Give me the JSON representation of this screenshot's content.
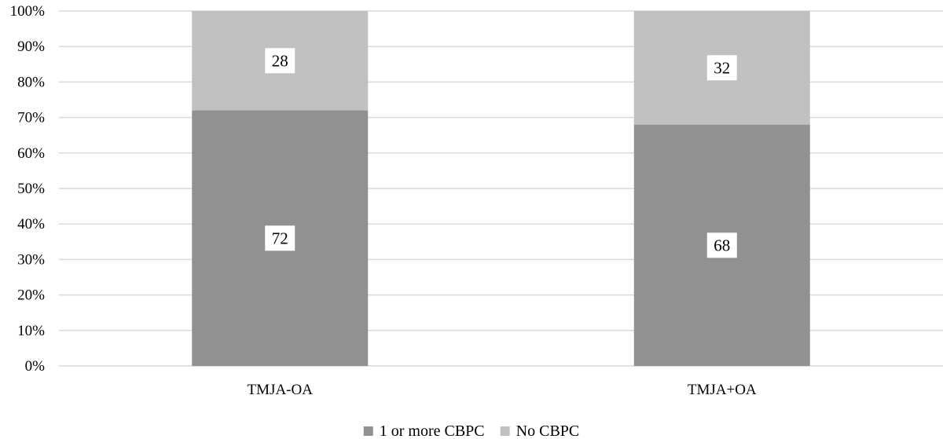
{
  "chart_data": {
    "type": "bar",
    "stacked": true,
    "percent_stacked": true,
    "categories": [
      "TMJA-OA",
      "TMJA+OA"
    ],
    "series": [
      {
        "name": "1 or more CBPC",
        "values": [
          72,
          68
        ],
        "color": "#919191"
      },
      {
        "name": "No CBPC",
        "values": [
          28,
          32
        ],
        "color": "#c0c0c0"
      }
    ],
    "ylim": [
      0,
      100
    ],
    "yticks": [
      0,
      10,
      20,
      30,
      40,
      50,
      60,
      70,
      80,
      90,
      100
    ],
    "ytick_labels": [
      "0%",
      "10%",
      "20%",
      "30%",
      "40%",
      "50%",
      "60%",
      "70%",
      "80%",
      "90%",
      "100%"
    ],
    "grid": true,
    "gridline_color": "#d9d9d9",
    "legend_position": "bottom",
    "data_labels": true,
    "title": "",
    "xlabel": "",
    "ylabel": ""
  }
}
